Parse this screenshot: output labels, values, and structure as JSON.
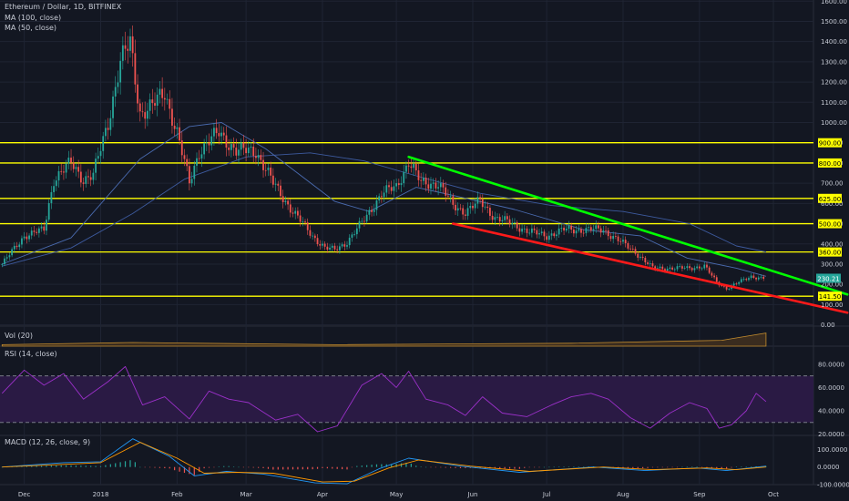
{
  "header": {
    "symbol": "Ethereum / Dollar, 1D, BITFINEX",
    "ma100": "MA (100, close)",
    "ma50": "MA (50, close)"
  },
  "panes": {
    "vol": "Vol (20)",
    "rsi": "RSI (14, close)",
    "macd": "MACD (12, 26, close, 9)"
  },
  "colors": {
    "background": "#131722",
    "grid": "#1f2433",
    "up": "#26a69a",
    "down": "#ef5350",
    "level": "#ffff00",
    "resistance": "#00ff00",
    "support": "#ff1a1a",
    "ma": "#3d5a9e",
    "rsi": "#9b30c9",
    "macd": "#2196f3",
    "signal": "#ff9800"
  },
  "chart_data": {
    "type": "candlestick",
    "price_axis": {
      "ticks": [
        "1600.00",
        "1500.00",
        "1400.00",
        "1300.00",
        "1200.00",
        "1100.00",
        "1000.00",
        "900.00",
        "800.00",
        "700.00",
        "600.00",
        "500.00",
        "400.00",
        "300.00",
        "200.00",
        "100.00",
        "0.00"
      ]
    },
    "time_axis": {
      "ticks": [
        "Dec",
        "2018",
        "Feb",
        "Mar",
        "Apr",
        "May",
        "Jun",
        "Jul",
        "Aug",
        "Sep",
        "Oct"
      ]
    },
    "horizontal_levels": [
      {
        "value": 900,
        "label": "900.00"
      },
      {
        "value": 800,
        "label": "800.00"
      },
      {
        "value": 625,
        "label": "625.00"
      },
      {
        "value": 500,
        "label": "500.00"
      },
      {
        "value": 360,
        "label": "360.00"
      },
      {
        "value": 141.5,
        "label": "141.50"
      }
    ],
    "trendlines": [
      {
        "role": "resistance",
        "from": {
          "date": "2018-05-06",
          "price": 830
        },
        "to": {
          "date": "2018-10-31",
          "price": 150
        }
      },
      {
        "role": "support",
        "from": {
          "date": "2018-05-24",
          "price": 500
        },
        "to": {
          "date": "2018-10-31",
          "price": 60
        }
      }
    ],
    "last_price": "230.21",
    "price_path": [
      {
        "date": "2017-11-22",
        "close": 300
      },
      {
        "date": "2017-12-01",
        "close": 440
      },
      {
        "date": "2017-12-09",
        "close": 470
      },
      {
        "date": "2017-12-13",
        "close": 720
      },
      {
        "date": "2017-12-20",
        "close": 800
      },
      {
        "date": "2017-12-25",
        "close": 720
      },
      {
        "date": "2017-12-29",
        "close": 740
      },
      {
        "date": "2018-01-04",
        "close": 1000
      },
      {
        "date": "2018-01-09",
        "close": 1300
      },
      {
        "date": "2018-01-13",
        "close": 1390
      },
      {
        "date": "2018-01-17",
        "close": 1050
      },
      {
        "date": "2018-01-22",
        "close": 1080
      },
      {
        "date": "2018-01-27",
        "close": 1150
      },
      {
        "date": "2018-02-01",
        "close": 950
      },
      {
        "date": "2018-02-06",
        "close": 700
      },
      {
        "date": "2018-02-10",
        "close": 860
      },
      {
        "date": "2018-02-18",
        "close": 950
      },
      {
        "date": "2018-02-25",
        "close": 860
      },
      {
        "date": "2018-03-05",
        "close": 860
      },
      {
        "date": "2018-03-12",
        "close": 700
      },
      {
        "date": "2018-03-20",
        "close": 560
      },
      {
        "date": "2018-03-28",
        "close": 440
      },
      {
        "date": "2018-04-02",
        "close": 380
      },
      {
        "date": "2018-04-06",
        "close": 370
      },
      {
        "date": "2018-04-11",
        "close": 410
      },
      {
        "date": "2018-04-18",
        "close": 520
      },
      {
        "date": "2018-04-25",
        "close": 650
      },
      {
        "date": "2018-05-01",
        "close": 680
      },
      {
        "date": "2018-05-06",
        "close": 810
      },
      {
        "date": "2018-05-11",
        "close": 700
      },
      {
        "date": "2018-05-18",
        "close": 700
      },
      {
        "date": "2018-05-24",
        "close": 590
      },
      {
        "date": "2018-05-29",
        "close": 560
      },
      {
        "date": "2018-06-04",
        "close": 610
      },
      {
        "date": "2018-06-10",
        "close": 530
      },
      {
        "date": "2018-06-17",
        "close": 500
      },
      {
        "date": "2018-06-24",
        "close": 460
      },
      {
        "date": "2018-07-01",
        "close": 440
      },
      {
        "date": "2018-07-08",
        "close": 470
      },
      {
        "date": "2018-07-15",
        "close": 470
      },
      {
        "date": "2018-07-24",
        "close": 470
      },
      {
        "date": "2018-07-31",
        "close": 410
      },
      {
        "date": "2018-08-06",
        "close": 360
      },
      {
        "date": "2018-08-13",
        "close": 280
      },
      {
        "date": "2018-08-20",
        "close": 280
      },
      {
        "date": "2018-08-27",
        "close": 280
      },
      {
        "date": "2018-09-03",
        "close": 290
      },
      {
        "date": "2018-09-08",
        "close": 210
      },
      {
        "date": "2018-09-12",
        "close": 180
      },
      {
        "date": "2018-09-17",
        "close": 210
      },
      {
        "date": "2018-09-22",
        "close": 240
      },
      {
        "date": "2018-09-27",
        "close": 230
      }
    ],
    "ma100_path": [
      {
        "date": "2017-11-22",
        "value": 290
      },
      {
        "date": "2017-12-20",
        "value": 380
      },
      {
        "date": "2018-01-14",
        "value": 550
      },
      {
        "date": "2018-02-04",
        "value": 720
      },
      {
        "date": "2018-03-01",
        "value": 830
      },
      {
        "date": "2018-03-27",
        "value": 850
      },
      {
        "date": "2018-04-18",
        "value": 810
      },
      {
        "date": "2018-05-11",
        "value": 730
      },
      {
        "date": "2018-06-04",
        "value": 650
      },
      {
        "date": "2018-07-03",
        "value": 590
      },
      {
        "date": "2018-08-01",
        "value": 560
      },
      {
        "date": "2018-08-28",
        "value": 500
      },
      {
        "date": "2018-09-16",
        "value": 390
      },
      {
        "date": "2018-09-28",
        "value": 360
      }
    ],
    "ma50_path": [
      {
        "date": "2017-11-22",
        "value": 300
      },
      {
        "date": "2017-12-20",
        "value": 430
      },
      {
        "date": "2018-01-17",
        "value": 820
      },
      {
        "date": "2018-02-06",
        "value": 980
      },
      {
        "date": "2018-02-19",
        "value": 1000
      },
      {
        "date": "2018-03-09",
        "value": 870
      },
      {
        "date": "2018-04-06",
        "value": 610
      },
      {
        "date": "2018-04-20",
        "value": 560
      },
      {
        "date": "2018-05-09",
        "value": 680
      },
      {
        "date": "2018-05-24",
        "value": 640
      },
      {
        "date": "2018-06-18",
        "value": 570
      },
      {
        "date": "2018-07-16",
        "value": 470
      },
      {
        "date": "2018-08-08",
        "value": 440
      },
      {
        "date": "2018-08-27",
        "value": 330
      },
      {
        "date": "2018-09-16",
        "value": 280
      },
      {
        "date": "2018-09-28",
        "value": 240
      }
    ],
    "rsi": {
      "ticks": [
        "80.0000",
        "60.0000",
        "40.0000",
        "20.0000"
      ],
      "overbought": 70,
      "oversold": 30,
      "path": [
        {
          "date": "2017-11-22",
          "value": 55
        },
        {
          "date": "2017-12-01",
          "value": 75
        },
        {
          "date": "2017-12-09",
          "value": 62
        },
        {
          "date": "2017-12-17",
          "value": 72
        },
        {
          "date": "2017-12-25",
          "value": 50
        },
        {
          "date": "2018-01-04",
          "value": 65
        },
        {
          "date": "2018-01-11",
          "value": 78
        },
        {
          "date": "2018-01-18",
          "value": 45
        },
        {
          "date": "2018-01-27",
          "value": 52
        },
        {
          "date": "2018-02-06",
          "value": 33
        },
        {
          "date": "2018-02-14",
          "value": 57
        },
        {
          "date": "2018-02-22",
          "value": 50
        },
        {
          "date": "2018-03-02",
          "value": 47
        },
        {
          "date": "2018-03-13",
          "value": 32
        },
        {
          "date": "2018-03-22",
          "value": 37
        },
        {
          "date": "2018-03-30",
          "value": 22
        },
        {
          "date": "2018-04-07",
          "value": 27
        },
        {
          "date": "2018-04-17",
          "value": 62
        },
        {
          "date": "2018-04-25",
          "value": 72
        },
        {
          "date": "2018-05-01",
          "value": 60
        },
        {
          "date": "2018-05-06",
          "value": 74
        },
        {
          "date": "2018-05-13",
          "value": 50
        },
        {
          "date": "2018-05-22",
          "value": 45
        },
        {
          "date": "2018-05-29",
          "value": 36
        },
        {
          "date": "2018-06-05",
          "value": 52
        },
        {
          "date": "2018-06-13",
          "value": 38
        },
        {
          "date": "2018-06-23",
          "value": 35
        },
        {
          "date": "2018-07-03",
          "value": 45
        },
        {
          "date": "2018-07-11",
          "value": 52
        },
        {
          "date": "2018-07-19",
          "value": 55
        },
        {
          "date": "2018-07-26",
          "value": 50
        },
        {
          "date": "2018-08-04",
          "value": 34
        },
        {
          "date": "2018-08-12",
          "value": 25
        },
        {
          "date": "2018-08-20",
          "value": 38
        },
        {
          "date": "2018-08-28",
          "value": 47
        },
        {
          "date": "2018-09-04",
          "value": 42
        },
        {
          "date": "2018-09-09",
          "value": 25
        },
        {
          "date": "2018-09-14",
          "value": 28
        },
        {
          "date": "2018-09-20",
          "value": 40
        },
        {
          "date": "2018-09-24",
          "value": 55
        },
        {
          "date": "2018-09-28",
          "value": 48
        }
      ]
    },
    "macd": {
      "ticks": [
        "100.0000",
        "0.0000",
        "-100.0000"
      ],
      "macd_path": [
        {
          "date": "2017-11-22",
          "value": 0
        },
        {
          "date": "2017-12-17",
          "value": 25
        },
        {
          "date": "2018-01-01",
          "value": 30
        },
        {
          "date": "2018-01-14",
          "value": 160
        },
        {
          "date": "2018-01-29",
          "value": 60
        },
        {
          "date": "2018-02-08",
          "value": -50
        },
        {
          "date": "2018-02-21",
          "value": -25
        },
        {
          "date": "2018-03-08",
          "value": -40
        },
        {
          "date": "2018-03-29",
          "value": -90
        },
        {
          "date": "2018-04-11",
          "value": -95
        },
        {
          "date": "2018-04-24",
          "value": -10
        },
        {
          "date": "2018-05-06",
          "value": 50
        },
        {
          "date": "2018-05-27",
          "value": 5
        },
        {
          "date": "2018-06-20",
          "value": -30
        },
        {
          "date": "2018-07-20",
          "value": 0
        },
        {
          "date": "2018-08-10",
          "value": -20
        },
        {
          "date": "2018-08-31",
          "value": -5
        },
        {
          "date": "2018-09-12",
          "value": -20
        },
        {
          "date": "2018-09-28",
          "value": 5
        }
      ],
      "signal_path": [
        {
          "date": "2017-11-22",
          "value": 0
        },
        {
          "date": "2017-12-17",
          "value": 15
        },
        {
          "date": "2018-01-01",
          "value": 25
        },
        {
          "date": "2018-01-17",
          "value": 140
        },
        {
          "date": "2018-02-01",
          "value": 50
        },
        {
          "date": "2018-02-12",
          "value": -35
        },
        {
          "date": "2018-02-25",
          "value": -30
        },
        {
          "date": "2018-03-12",
          "value": -35
        },
        {
          "date": "2018-04-01",
          "value": -85
        },
        {
          "date": "2018-04-14",
          "value": -80
        },
        {
          "date": "2018-04-28",
          "value": -5
        },
        {
          "date": "2018-05-10",
          "value": 40
        },
        {
          "date": "2018-05-31",
          "value": 5
        },
        {
          "date": "2018-06-24",
          "value": -25
        },
        {
          "date": "2018-07-24",
          "value": 0
        },
        {
          "date": "2018-08-13",
          "value": -15
        },
        {
          "date": "2018-09-04",
          "value": -5
        },
        {
          "date": "2018-09-16",
          "value": -15
        },
        {
          "date": "2018-09-28",
          "value": 0
        }
      ]
    },
    "volume_path": [
      {
        "date": "2017-11-22",
        "value": 0.1
      },
      {
        "date": "2018-01-14",
        "value": 0.25
      },
      {
        "date": "2018-04-06",
        "value": 0.1
      },
      {
        "date": "2018-07-11",
        "value": 0.2
      },
      {
        "date": "2018-09-10",
        "value": 0.4
      },
      {
        "date": "2018-09-28",
        "value": 0.9
      }
    ]
  }
}
